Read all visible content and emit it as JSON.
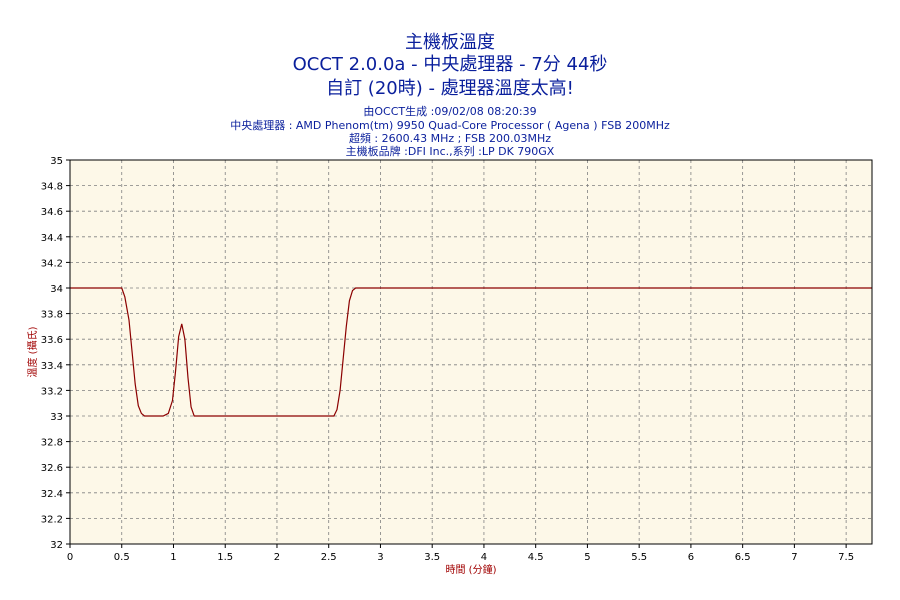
{
  "header": {
    "title_line1": "主機板溫度",
    "title_line2": "OCCT 2.0.0a - 中央處理器 - 7分 44秒",
    "title_line3": "自訂 (20時) - 處理器溫度太高!",
    "sub_line1": "由OCCT生成 :09/02/08 08:20:39",
    "sub_line2": "中央處理器 : AMD Phenom(tm) 9950 Quad-Core Processor ( Agena ) FSB 200MHz",
    "sub_line3": "超頻 : 2600.43 MHz ; FSB 200.03MHz",
    "sub_line4": "主機板品牌 :DFI Inc.,系列 :LP DK 790GX"
  },
  "colors": {
    "title": "#0a1f9c",
    "plot_bg": "#fdf8e8",
    "line": "#8b0000",
    "axis_label": "#a00000",
    "grid": "#808080"
  },
  "chart_data": {
    "type": "line",
    "title": "主機板溫度",
    "xlabel": "時間 (分鐘)",
    "ylabel": "溫度 (攝氏)",
    "xlim": [
      0,
      7.75
    ],
    "ylim": [
      32,
      35
    ],
    "xticks": [
      0,
      0.5,
      1,
      1.5,
      2,
      2.5,
      3,
      3.5,
      4,
      4.5,
      5,
      5.5,
      6,
      6.5,
      7,
      7.5
    ],
    "xtick_labels": [
      "0",
      "0.5",
      "1",
      "1.5",
      "2",
      "2.5",
      "3",
      "3.5",
      "4",
      "4.5",
      "5",
      "5.5",
      "6",
      "6.5",
      "7",
      "7.5"
    ],
    "yticks": [
      32,
      32.2,
      32.4,
      32.6,
      32.8,
      33,
      33.2,
      33.4,
      33.6,
      33.8,
      34,
      34.2,
      34.4,
      34.6,
      34.8,
      35
    ],
    "ytick_labels": [
      "32",
      "32.2",
      "32.4",
      "32.6",
      "32.8",
      "33",
      "33.2",
      "33.4",
      "33.6",
      "33.8",
      "34",
      "34.2",
      "34.4",
      "34.6",
      "34.8",
      "35"
    ],
    "grid": true,
    "series": [
      {
        "x": [
          0,
          0.5,
          0.53,
          0.57,
          0.6,
          0.63,
          0.66,
          0.69,
          0.72,
          0.8,
          0.9,
          0.95,
          0.99,
          1.02,
          1.05,
          1.08,
          1.11,
          1.14,
          1.17,
          1.2,
          1.3,
          2.4,
          2.55,
          2.58,
          2.61,
          2.64,
          2.67,
          2.7,
          2.73,
          2.76,
          7.75
        ],
        "y": [
          34,
          34,
          33.93,
          33.75,
          33.5,
          33.25,
          33.08,
          33.02,
          33.0,
          33.0,
          33.0,
          33.02,
          33.12,
          33.35,
          33.62,
          33.72,
          33.6,
          33.3,
          33.07,
          33.0,
          33.0,
          33.0,
          33.0,
          33.05,
          33.2,
          33.45,
          33.7,
          33.9,
          33.98,
          34.0,
          34.0
        ]
      }
    ]
  }
}
